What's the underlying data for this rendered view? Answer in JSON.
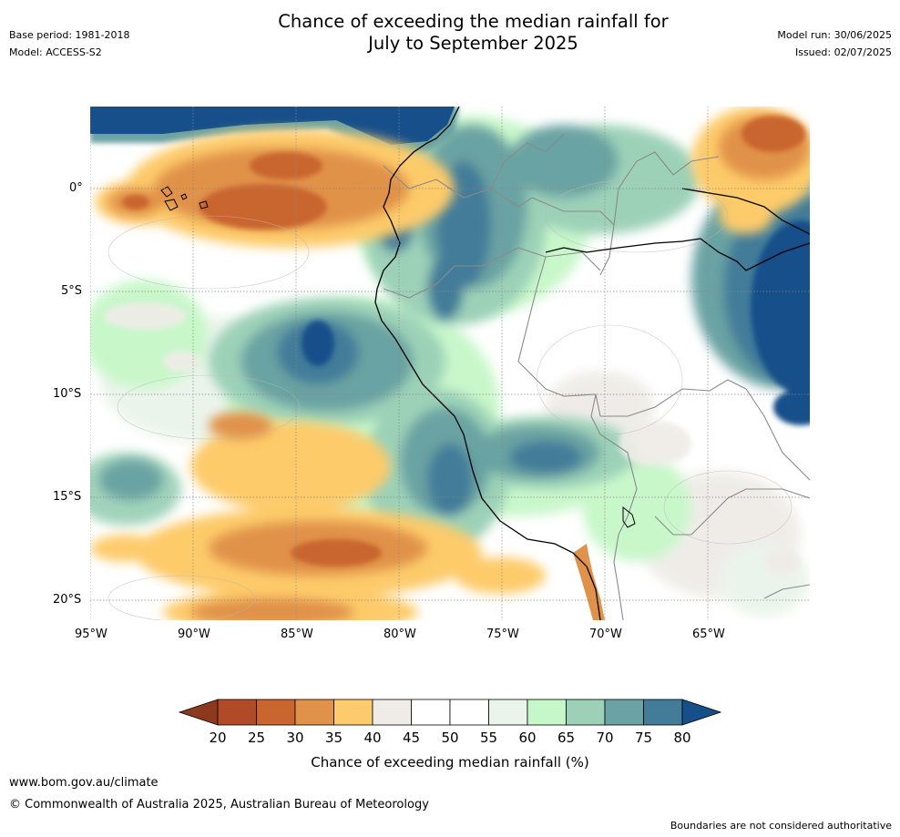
{
  "header": {
    "base_period": "Base period: 1981-2018",
    "model": "Model: ACCESS-S2",
    "title_line1": "Chance of exceeding the median rainfall for",
    "title_line2": "July to September 2025",
    "model_run": "Model run: 30/06/2025",
    "issued": "Issued: 02/07/2025"
  },
  "map": {
    "lat_labels": [
      "0°",
      "5°S",
      "10°S",
      "15°S",
      "20°S"
    ],
    "lon_labels": [
      "95°W",
      "90°W",
      "85°W",
      "80°W",
      "75°W",
      "70°W",
      "65°W"
    ]
  },
  "colorbar": {
    "ticks": [
      "20",
      "25",
      "30",
      "35",
      "40",
      "45",
      "50",
      "55",
      "60",
      "65",
      "70",
      "75",
      "80"
    ],
    "colors": [
      "#8b3a1e",
      "#b04a27",
      "#c9652e",
      "#e0924a",
      "#fdcb6b",
      "#efece7",
      "#ffffff",
      "#ffffff",
      "#eaf4ea",
      "#c6f7c8",
      "#9cd1b8",
      "#6aa3a3",
      "#437c99",
      "#164f8a"
    ],
    "title": "Chance of exceeding median rainfall (%)"
  },
  "footer": {
    "website": "www.bom.gov.au/climate",
    "copyright": "© Commonwealth of Australia 2025, Australian Bureau of Meteorology",
    "disclaimer": "Boundaries are not considered authoritative"
  }
}
